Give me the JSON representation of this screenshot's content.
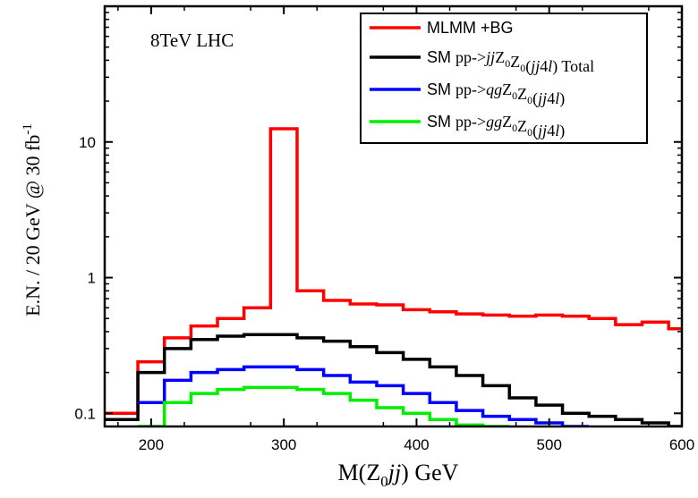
{
  "chart_data": {
    "type": "line",
    "annotation": "8TeV LHC",
    "xlabel": {
      "prefix": "M(Z",
      "sub": "0",
      "italic": "jj",
      "suffix": ")  GeV"
    },
    "ylabel": {
      "text": "E.N. / 20 GeV @ 30 fb",
      "sup": "-1"
    },
    "x_ticks": [
      "200",
      "300",
      "400",
      "500",
      "600"
    ],
    "y_ticks": [
      "0.1",
      "1",
      "10"
    ],
    "xlim": [
      165,
      600
    ],
    "ylim": [
      0.08,
      100
    ],
    "y_scale": "log",
    "legend_position": "top-right",
    "bin_edges": [
      165,
      190,
      210,
      230,
      250,
      270,
      290,
      310,
      330,
      350,
      370,
      390,
      410,
      430,
      450,
      470,
      490,
      510,
      530,
      550,
      570,
      590,
      600
    ],
    "series": [
      {
        "color": "#ff0000",
        "legend": [
          {
            "t": "MLMM +BG",
            "f": "sans"
          }
        ],
        "values": [
          0.1,
          0.24,
          0.36,
          0.44,
          0.5,
          0.6,
          12.5,
          0.8,
          0.68,
          0.64,
          0.63,
          0.58,
          0.56,
          0.54,
          0.53,
          0.52,
          0.53,
          0.52,
          0.5,
          0.45,
          0.47,
          0.42
        ]
      },
      {
        "color": "#000000",
        "legend": [
          {
            "t": "SM ",
            "f": "sans"
          },
          {
            "t": "pp->",
            "f": "serif"
          },
          {
            "t": "jj",
            "f": "serif-i"
          },
          {
            "t": "Z",
            "f": "serif"
          },
          {
            "t": "0",
            "f": "sub"
          },
          {
            "t": "Z",
            "f": "serif"
          },
          {
            "t": "0",
            "f": "sub"
          },
          {
            "t": "(",
            "f": "serif"
          },
          {
            "t": "jj",
            "f": "serif-i"
          },
          {
            "t": "4",
            "f": "serif"
          },
          {
            "t": "l",
            "f": "serif-i"
          },
          {
            "t": ")  Total",
            "f": "serif"
          }
        ],
        "values": [
          0.09,
          0.2,
          0.3,
          0.35,
          0.37,
          0.38,
          0.38,
          0.36,
          0.34,
          0.31,
          0.28,
          0.25,
          0.22,
          0.19,
          0.16,
          0.13,
          0.115,
          0.1,
          0.095,
          0.09,
          0.085,
          0.08
        ]
      },
      {
        "color": "#0000ff",
        "legend": [
          {
            "t": "SM ",
            "f": "sans"
          },
          {
            "t": "pp->",
            "f": "serif"
          },
          {
            "t": "qg",
            "f": "serif-i"
          },
          {
            "t": "Z",
            "f": "serif"
          },
          {
            "t": "0",
            "f": "sub"
          },
          {
            "t": "Z",
            "f": "serif"
          },
          {
            "t": "0",
            "f": "sub"
          },
          {
            "t": "(",
            "f": "serif"
          },
          {
            "t": "jj",
            "f": "serif-i"
          },
          {
            "t": "4",
            "f": "serif"
          },
          {
            "t": "l",
            "f": "serif-i"
          },
          {
            "t": ")",
            "f": "serif"
          }
        ],
        "values": [
          null,
          0.12,
          0.175,
          0.2,
          0.21,
          0.22,
          0.22,
          0.21,
          0.19,
          0.17,
          0.16,
          0.14,
          0.12,
          0.105,
          0.095,
          0.09,
          0.085,
          0.08,
          null,
          null,
          null,
          null
        ]
      },
      {
        "color": "#00ee00",
        "legend": [
          {
            "t": "SM ",
            "f": "sans"
          },
          {
            "t": "pp->",
            "f": "serif"
          },
          {
            "t": "gg",
            "f": "serif-i"
          },
          {
            "t": "Z",
            "f": "serif"
          },
          {
            "t": "0",
            "f": "sub"
          },
          {
            "t": "Z",
            "f": "serif"
          },
          {
            "t": "0",
            "f": "sub"
          },
          {
            "t": "(",
            "f": "serif"
          },
          {
            "t": "jj",
            "f": "serif-i"
          },
          {
            "t": "4",
            "f": "serif"
          },
          {
            "t": "l",
            "f": "serif-i"
          },
          {
            "t": ")",
            "f": "serif"
          }
        ],
        "values": [
          null,
          0.08,
          0.12,
          0.14,
          0.15,
          0.155,
          0.155,
          0.15,
          0.14,
          0.125,
          0.11,
          0.1,
          0.09,
          0.082,
          0.08,
          null,
          null,
          null,
          null,
          null,
          null,
          null
        ]
      }
    ]
  }
}
